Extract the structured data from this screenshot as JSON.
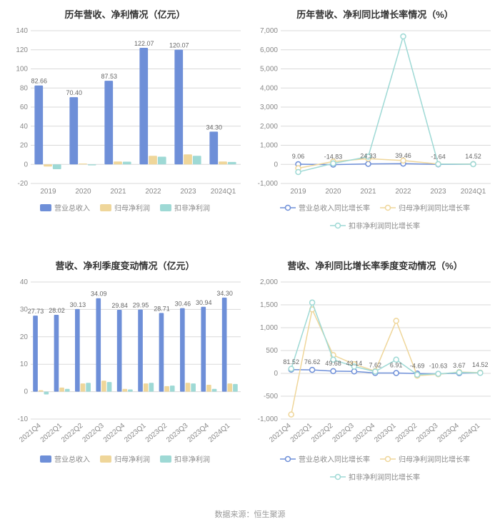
{
  "footer": "数据来源：恒生聚源",
  "colors": {
    "series1": "#6e8fd8",
    "series2": "#efd69a",
    "series3": "#9ed9d5",
    "grid": "#d9d9d9",
    "text": "#666666",
    "title": "#333333",
    "tick": "#888888",
    "bg": "#ffffff"
  },
  "chart1": {
    "title": "历年营收、净利情况（亿元）",
    "type": "bar",
    "categories": [
      "2019",
      "2020",
      "2021",
      "2022",
      "2023",
      "2024Q1"
    ],
    "ylim": [
      -20,
      140
    ],
    "ytick_step": 20,
    "series": [
      {
        "name": "营业总收入",
        "color": "#6e8fd8",
        "values": [
          82.66,
          70.4,
          87.53,
          122.07,
          120.07,
          34.3
        ],
        "show_labels": true
      },
      {
        "name": "归母净利润",
        "color": "#efd69a",
        "values": [
          -2.2,
          0.8,
          3.0,
          9.0,
          10.5,
          3.0
        ],
        "show_labels": false
      },
      {
        "name": "扣非净利润",
        "color": "#9ed9d5",
        "values": [
          -5.0,
          -1.0,
          2.8,
          8.0,
          9.0,
          2.5
        ],
        "show_labels": false
      }
    ],
    "legend": [
      "营业总收入",
      "归母净利润",
      "扣非净利润"
    ],
    "legend_type": "bar"
  },
  "chart2": {
    "title": "历年营收、净利同比增长率情况（%）",
    "type": "line",
    "categories": [
      "2019",
      "2020",
      "2021",
      "2022",
      "2023",
      "2024Q1"
    ],
    "ylim": [
      -1000,
      7000
    ],
    "ytick_step": 1000,
    "series": [
      {
        "name": "营业总收入同比增长率",
        "color": "#6e8fd8",
        "values": [
          9.06,
          -14.83,
          24.33,
          39.46,
          -1.64,
          14.52
        ]
      },
      {
        "name": "归母净利润同比增长率",
        "color": "#efd69a",
        "values": [
          -200,
          150,
          300,
          200,
          20,
          15
        ]
      },
      {
        "name": "扣非净利润同比增长率",
        "color": "#9ed9d5",
        "values": [
          -400,
          50,
          400,
          6700,
          15,
          10
        ]
      }
    ],
    "point_labels": [
      9.06,
      -14.83,
      24.33,
      39.46,
      -1.64,
      14.52
    ],
    "legend": [
      "营业总收入同比增长率",
      "归母净利润同比增长率",
      "扣非净利润同比增长率"
    ],
    "legend_type": "line"
  },
  "chart3": {
    "title": "营收、净利季度变动情况（亿元）",
    "type": "bar",
    "categories": [
      "2021Q4",
      "2022Q1",
      "2022Q2",
      "2022Q3",
      "2022Q4",
      "2023Q1",
      "2023Q2",
      "2023Q3",
      "2023Q4",
      "2024Q1"
    ],
    "ylim": [
      -10,
      40
    ],
    "ytick_step": 10,
    "rotate_x": true,
    "series": [
      {
        "name": "营业总收入",
        "color": "#6e8fd8",
        "values": [
          27.73,
          28.02,
          30.13,
          34.09,
          29.84,
          29.95,
          28.71,
          30.46,
          30.94,
          34.3
        ],
        "show_labels": true
      },
      {
        "name": "归母净利润",
        "color": "#efd69a",
        "values": [
          0.5,
          1.5,
          3.0,
          4.0,
          1.0,
          3.0,
          2.0,
          3.2,
          2.5,
          3.0
        ],
        "show_labels": false
      },
      {
        "name": "扣非净利润",
        "color": "#9ed9d5",
        "values": [
          -1.0,
          1.0,
          3.2,
          3.5,
          0.8,
          3.2,
          2.2,
          3.0,
          1.0,
          2.8
        ],
        "show_labels": false
      }
    ],
    "legend": [
      "营业总收入",
      "归母净利润",
      "扣非净利润"
    ],
    "legend_type": "bar"
  },
  "chart4": {
    "title": "营收、净利同比增长率季度变动情况（%）",
    "type": "line",
    "categories": [
      "2021Q4",
      "2022Q1",
      "2022Q2",
      "2022Q3",
      "2022Q4",
      "2023Q1",
      "2023Q2",
      "2023Q3",
      "2023Q4",
      "2024Q1"
    ],
    "ylim": [
      -1000,
      2000
    ],
    "ytick_step": 500,
    "rotate_x": true,
    "series": [
      {
        "name": "营业总收入同比增长率",
        "color": "#6e8fd8",
        "values": [
          81.52,
          76.62,
          49.68,
          43.14,
          7.62,
          6.91,
          -4.69,
          -10.63,
          3.67,
          14.52
        ]
      },
      {
        "name": "归母净利润同比增长率",
        "color": "#efd69a",
        "values": [
          -900,
          1400,
          400,
          200,
          50,
          1150,
          -50,
          -20,
          30,
          15
        ]
      },
      {
        "name": "扣非净利润同比增长率",
        "color": "#9ed9d5",
        "values": [
          100,
          1550,
          300,
          150,
          40,
          300,
          -30,
          -10,
          20,
          10
        ]
      }
    ],
    "point_labels": [
      81.52,
      76.62,
      49.68,
      43.14,
      7.62,
      6.91,
      -4.69,
      -10.63,
      3.67,
      14.52
    ],
    "legend": [
      "营业总收入同比增长率",
      "归母净利润同比增长率",
      "扣非净利润同比增长率"
    ],
    "legend_type": "line"
  }
}
